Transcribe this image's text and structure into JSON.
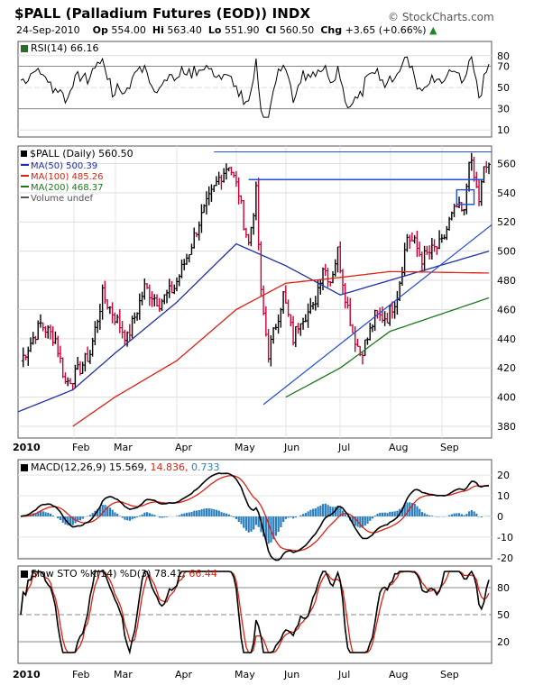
{
  "header": {
    "symbol": "$PALL",
    "name": "(Palladium Futures (EOD)) INDX",
    "date": "24-Sep-2010",
    "open_label": "Op",
    "open": "554.00",
    "high_label": "Hi",
    "high": "563.40",
    "low_label": "Lo",
    "low": "551.90",
    "close_label": "Cl",
    "close": "560.50",
    "chg_label": "Chg",
    "chg": "+3.65 (+0.66%)",
    "chg_arrow": "▲",
    "brand": "© StockCharts.com"
  },
  "panels": {
    "rsi": {
      "label": "RSI(14) 66.16",
      "ticks": [
        "80",
        "70",
        "50",
        "30",
        "10"
      ]
    },
    "price": {
      "label": "$PALL (Daily) 560.50",
      "legend": [
        {
          "text": "MA(50) 500.39",
          "color": "#1f2fa8"
        },
        {
          "text": "MA(100) 485.26",
          "color": "#e02010"
        },
        {
          "text": "MA(200) 468.37",
          "color": "#1a7a1a"
        },
        {
          "text": "Volume undef",
          "color": "#555555"
        }
      ],
      "ticks": [
        "560",
        "540",
        "520",
        "500",
        "480",
        "460",
        "440",
        "420",
        "400",
        "380"
      ]
    },
    "macd": {
      "label_prefix": "MACD(12,26,9)",
      "v1": "15.569",
      "v2": "14.836",
      "v3": "0.733",
      "ticks": [
        "20",
        "10",
        "0",
        "-10",
        "-20"
      ]
    },
    "sto": {
      "label_prefix": "Slow STO %K(14) %D(3)",
      "k": "78.41",
      "d": "66.44",
      "ticks": [
        "80",
        "50",
        "20"
      ]
    }
  },
  "x_axis": {
    "labels": [
      "2010",
      "Feb",
      "Mar",
      "Apr",
      "May",
      "Jun",
      "Jul",
      "Aug",
      "Sep"
    ]
  },
  "chart_data": {
    "type": "line",
    "title": "$PALL (Palladium Futures (EOD)) INDX",
    "x": [
      "Jan",
      "Feb",
      "Mar",
      "Apr",
      "May",
      "Jun",
      "Jul",
      "Aug",
      "Sep"
    ],
    "ylim": [
      380,
      570
    ],
    "series": [
      {
        "name": "$PALL (Daily)",
        "values": [
          420,
          425,
          455,
          500,
          555,
          430,
          440,
          510,
          560
        ]
      },
      {
        "name": "MA(50)",
        "values": [
          390,
          405,
          430,
          465,
          505,
          490,
          470,
          480,
          500
        ]
      },
      {
        "name": "MA(100)",
        "values": [
          null,
          380,
          400,
          425,
          460,
          478,
          482,
          486,
          485
        ]
      },
      {
        "name": "MA(200)",
        "values": [
          null,
          null,
          null,
          null,
          null,
          400,
          420,
          445,
          468
        ]
      }
    ],
    "grid": true,
    "legend_position": "top-left",
    "colors": {
      "ma50": "#1f2fa8",
      "ma100": "#e02010",
      "ma200": "#1a7a1a",
      "price_up": "#000000",
      "price_down": "#cc0033"
    }
  }
}
